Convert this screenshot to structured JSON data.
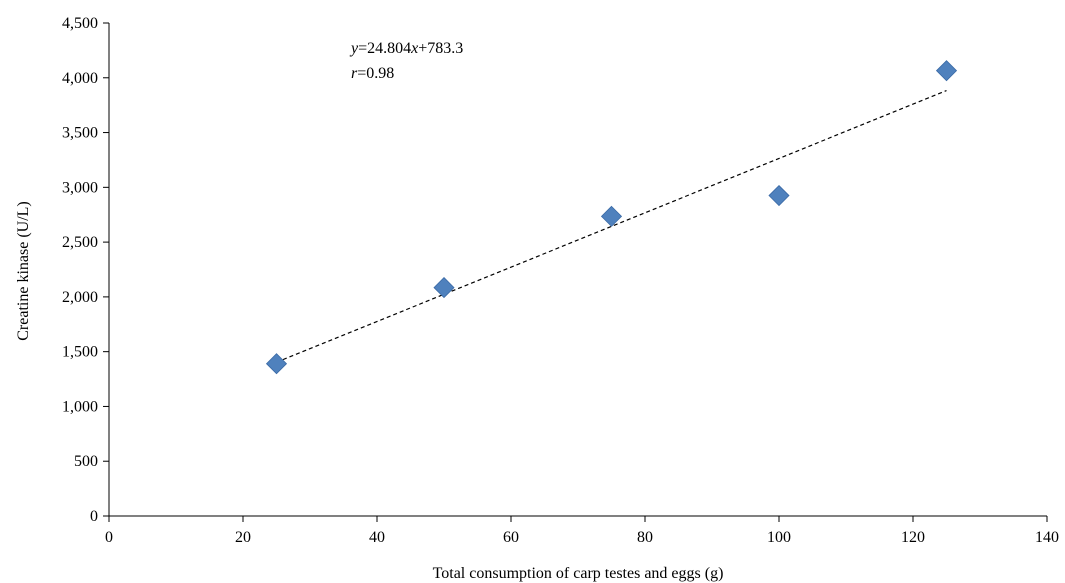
{
  "chart_data": {
    "type": "scatter",
    "xlabel": "Total consumption of carp testes and eggs (g)",
    "ylabel": "Creatine kinase (U/L)",
    "xlim": [
      0,
      140
    ],
    "ylim": [
      0,
      4500
    ],
    "x_ticks": [
      0,
      20,
      40,
      60,
      80,
      100,
      120,
      140
    ],
    "y_ticks": [
      0,
      500,
      1000,
      1500,
      2000,
      2500,
      3000,
      3500,
      4000,
      4500
    ],
    "x_tick_labels": [
      "0",
      "20",
      "40",
      "60",
      "80",
      "100",
      "120",
      "140"
    ],
    "y_tick_labels": [
      "0",
      "500",
      "1,000",
      "1,500",
      "2,000",
      "2,500",
      "3,000",
      "3,500",
      "4,000",
      "4,500"
    ],
    "series": [
      {
        "marker": "diamond",
        "color": "#4F81BD",
        "x": [
          25,
          50,
          75,
          100,
          125
        ],
        "y": [
          1390,
          2085,
          2735,
          2925,
          4065
        ]
      }
    ],
    "trendline": {
      "style": "dashed",
      "color": "#000000",
      "slope": 24.804,
      "intercept": 783.3,
      "x_range": [
        25,
        125
      ]
    },
    "annotation": {
      "equation": {
        "y": "y",
        "eq_mid": "=24.804",
        "x": "x",
        "rest": "+783.3"
      },
      "r_value": {
        "r": "r",
        "rest": "=0.98"
      }
    },
    "grid": false,
    "legend": "none"
  }
}
